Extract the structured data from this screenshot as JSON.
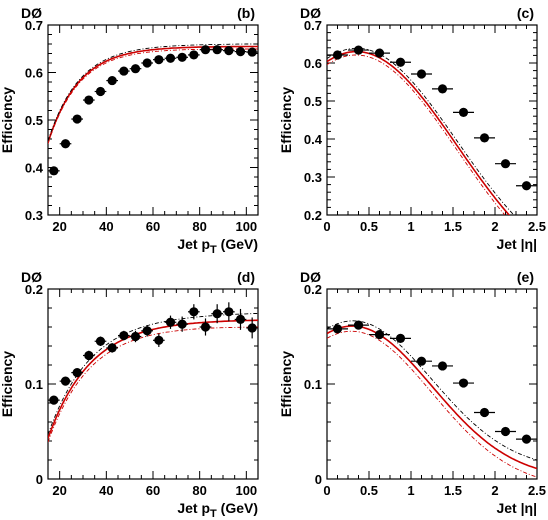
{
  "colors": {
    "fit": "#cc0000",
    "band": "#000000",
    "marker": "#000000"
  },
  "chart_data": [
    {
      "type": "scatter",
      "panel_label": "(b)",
      "experiment_label": "DØ",
      "xlabel": "Jet p",
      "xlabel_sub": "T",
      "xlabel_unit": " (GeV)",
      "ylabel": "Efficiency",
      "xlim": [
        15,
        105
      ],
      "ylim": [
        0.3,
        0.7
      ],
      "xticks": [
        20,
        40,
        60,
        80,
        100
      ],
      "yticks": [
        0.3,
        0.4,
        0.5,
        0.6,
        0.7
      ],
      "ytick_labels": [
        "0.3",
        "0.4",
        "0.5",
        "0.6",
        "0.7"
      ],
      "fit": {
        "form": "saturating",
        "A": 0.655,
        "B": 0.95,
        "k": 0.075
      },
      "band_halfwidth": 0.003,
      "x": [
        17.5,
        22.5,
        27.5,
        32.5,
        37.5,
        42.5,
        47.5,
        52.5,
        57.5,
        62.5,
        67.5,
        72.5,
        77.5,
        82.5,
        87.5,
        92.5,
        97.5,
        102.5
      ],
      "y": [
        0.393,
        0.45,
        0.502,
        0.542,
        0.56,
        0.583,
        0.603,
        0.608,
        0.62,
        0.627,
        0.63,
        0.632,
        0.637,
        0.648,
        0.648,
        0.646,
        0.644,
        0.643
      ],
      "xerr": [
        2.5,
        2.5,
        2.5,
        2.5,
        2.5,
        2.5,
        2.5,
        2.5,
        2.5,
        2.5,
        2.5,
        2.5,
        2.5,
        2.5,
        2.5,
        2.5,
        2.5,
        2.5
      ],
      "yerr": [
        0.005,
        0.005,
        0.005,
        0.005,
        0.005,
        0.005,
        0.005,
        0.005,
        0.005,
        0.005,
        0.005,
        0.005,
        0.005,
        0.005,
        0.005,
        0.005,
        0.005,
        0.005
      ]
    },
    {
      "type": "scatter",
      "panel_label": "(c)",
      "experiment_label": "DØ",
      "xlabel": "Jet |η|",
      "xlabel_sub": "",
      "xlabel_unit": "",
      "ylabel": "Efficiency",
      "xlim": [
        0,
        2.5
      ],
      "ylim": [
        0.2,
        0.7
      ],
      "xticks": [
        0,
        0.5,
        1,
        1.5,
        2,
        2.5
      ],
      "yticks": [
        0.2,
        0.3,
        0.4,
        0.5,
        0.6,
        0.7
      ],
      "ytick_labels": [
        "0.2",
        "0.3",
        "0.4",
        "0.5",
        "0.6",
        "0.7"
      ],
      "fit": {
        "form": "gaussian",
        "A": 0.63,
        "mu": 0.35,
        "sigma": 1.2
      },
      "band_halfwidth": 0.008,
      "x": [
        0.125,
        0.375,
        0.625,
        0.875,
        1.125,
        1.375,
        1.625,
        1.875,
        2.125,
        2.375
      ],
      "y": [
        0.621,
        0.634,
        0.626,
        0.602,
        0.571,
        0.532,
        0.47,
        0.403,
        0.335,
        0.277
      ],
      "xerr": [
        0.125,
        0.125,
        0.125,
        0.125,
        0.125,
        0.125,
        0.125,
        0.125,
        0.125,
        0.125
      ],
      "yerr": [
        0.006,
        0.006,
        0.006,
        0.006,
        0.006,
        0.006,
        0.006,
        0.006,
        0.006,
        0.006
      ]
    },
    {
      "type": "scatter",
      "panel_label": "(d)",
      "experiment_label": "DØ",
      "xlabel": "Jet p",
      "xlabel_sub": "T",
      "xlabel_unit": " (GeV)",
      "ylabel": "Efficiency",
      "xlim": [
        15,
        105
      ],
      "ylim": [
        0,
        0.2
      ],
      "xticks": [
        20,
        40,
        60,
        80,
        100
      ],
      "yticks": [
        0,
        0.1,
        0.2
      ],
      "ytick_labels": [
        "0",
        "0.1",
        "0.2"
      ],
      "fit": {
        "form": "saturating",
        "A": 0.168,
        "B": 1.7,
        "k": 0.055
      },
      "band_halfwidth": 0.004,
      "x": [
        17.5,
        22.5,
        27.5,
        32.5,
        37.5,
        42.5,
        47.5,
        52.5,
        57.5,
        62.5,
        67.5,
        72.5,
        77.5,
        82.5,
        87.5,
        92.5,
        97.5,
        102.5
      ],
      "y": [
        0.083,
        0.103,
        0.112,
        0.13,
        0.145,
        0.138,
        0.151,
        0.15,
        0.156,
        0.146,
        0.165,
        0.163,
        0.176,
        0.16,
        0.174,
        0.176,
        0.168,
        0.159
      ],
      "xerr": [
        2.5,
        2.5,
        2.5,
        2.5,
        2.5,
        2.5,
        2.5,
        2.5,
        2.5,
        2.5,
        2.5,
        2.5,
        2.5,
        2.5,
        2.5,
        2.5,
        2.5,
        2.5
      ],
      "yerr": [
        0.004,
        0.004,
        0.004,
        0.005,
        0.005,
        0.005,
        0.005,
        0.006,
        0.006,
        0.007,
        0.007,
        0.008,
        0.008,
        0.009,
        0.01,
        0.01,
        0.011,
        0.011
      ]
    },
    {
      "type": "scatter",
      "panel_label": "(e)",
      "experiment_label": "DØ",
      "xlabel": "Jet |η|",
      "xlabel_sub": "",
      "xlabel_unit": "",
      "ylabel": "Efficiency",
      "xlim": [
        0,
        2.5
      ],
      "ylim": [
        0,
        0.2
      ],
      "xticks": [
        0,
        0.5,
        1,
        1.5,
        2,
        2.5
      ],
      "yticks": [
        0,
        0.1,
        0.2
      ],
      "ytick_labels": [
        "0",
        "0.1",
        "0.2"
      ],
      "fit": {
        "form": "gaussian",
        "A": 0.161,
        "mu": 0.3,
        "sigma": 0.95
      },
      "band_halfwidth": 0.005,
      "x": [
        0.125,
        0.375,
        0.625,
        0.875,
        1.125,
        1.375,
        1.625,
        1.875,
        2.125,
        2.375
      ],
      "y": [
        0.158,
        0.162,
        0.152,
        0.148,
        0.124,
        0.119,
        0.101,
        0.07,
        0.05,
        0.042
      ],
      "xerr": [
        0.125,
        0.125,
        0.125,
        0.125,
        0.125,
        0.125,
        0.125,
        0.125,
        0.125,
        0.125
      ],
      "yerr": [
        0.003,
        0.003,
        0.003,
        0.003,
        0.003,
        0.004,
        0.004,
        0.004,
        0.004,
        0.004
      ]
    }
  ]
}
